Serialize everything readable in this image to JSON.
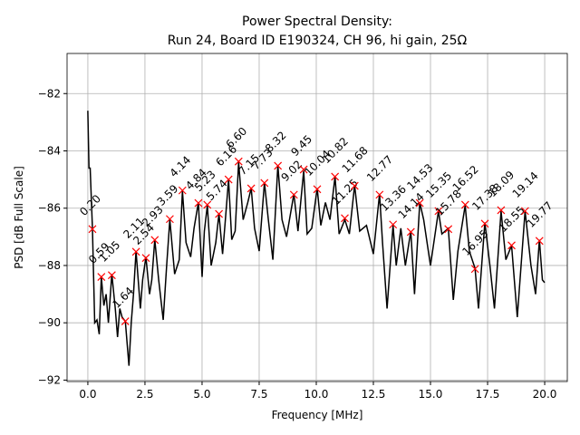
{
  "chart_data": {
    "type": "line",
    "title": "Power Spectral Density:",
    "subtitle": "Run 24, Board ID E190324, CH 96, hi gain, 25Ω",
    "x_label": "Frequency [MHz]",
    "y_label": "PSD [dB Full Scale]",
    "xlim": [
      -0.91,
      20.99
    ],
    "ylim": [
      -92.05,
      -80.6
    ],
    "xticks": [
      {
        "value": 0,
        "label": "0.0"
      },
      {
        "value": 2.5,
        "label": "2.5"
      },
      {
        "value": 5,
        "label": "5.0"
      },
      {
        "value": 7.5,
        "label": "7.5"
      },
      {
        "value": 10,
        "label": "10.0"
      },
      {
        "value": 12.5,
        "label": "12.5"
      },
      {
        "value": 15,
        "label": "15.0"
      },
      {
        "value": 17.5,
        "label": "17.5"
      },
      {
        "value": 20,
        "label": "20.0"
      }
    ],
    "yticks": [
      {
        "value": -92,
        "label": "−92"
      },
      {
        "value": -90,
        "label": "−90"
      },
      {
        "value": -88,
        "label": "−88"
      },
      {
        "value": -86,
        "label": "−86"
      },
      {
        "value": -84,
        "label": "−84"
      },
      {
        "value": -82,
        "label": "−82"
      }
    ],
    "grid": true,
    "series": [
      {
        "color": "#000000",
        "x": [
          0,
          0.05,
          0.1,
          0.2,
          0.3,
          0.4,
          0.5,
          0.59,
          0.7,
          0.8,
          0.9,
          1.05,
          1.2,
          1.3,
          1.4,
          1.5,
          1.64,
          1.8,
          1.9,
          2.0,
          2.11,
          2.3,
          2.4,
          2.54,
          2.7,
          2.8,
          2.93,
          3.1,
          3.3,
          3.45,
          3.59,
          3.8,
          4.0,
          4.14,
          4.3,
          4.5,
          4.65,
          4.84,
          5.0,
          5.1,
          5.23,
          5.4,
          5.6,
          5.74,
          5.9,
          6.0,
          6.16,
          6.3,
          6.45,
          6.6,
          6.8,
          7.0,
          7.15,
          7.3,
          7.5,
          7.73,
          7.9,
          8.1,
          8.32,
          8.5,
          8.7,
          9.02,
          9.2,
          9.45,
          9.6,
          9.8,
          10.04,
          10.2,
          10.4,
          10.6,
          10.82,
          11.0,
          11.25,
          11.45,
          11.68,
          11.9,
          12.2,
          12.5,
          12.77,
          12.9,
          13.1,
          13.36,
          13.5,
          13.7,
          13.9,
          14.14,
          14.3,
          14.53,
          14.7,
          15.0,
          15.35,
          15.5,
          15.78,
          16.0,
          16.2,
          16.52,
          16.7,
          16.95,
          17.1,
          17.38,
          17.6,
          17.8,
          18.09,
          18.3,
          18.55,
          18.8,
          19.14,
          19.4,
          19.6,
          19.77,
          19.9,
          20.0
        ],
        "values": [
          -82.6,
          -84.6,
          -84.6,
          -86.7,
          -90.0,
          -89.9,
          -90.4,
          -88.4,
          -89.4,
          -89.0,
          -90.0,
          -88.3,
          -89.5,
          -90.5,
          -89.5,
          -89.8,
          -89.95,
          -91.5,
          -90.0,
          -89.0,
          -87.5,
          -89.5,
          -88.5,
          -87.7,
          -89.0,
          -88.5,
          -87.1,
          -88.5,
          -89.9,
          -88.0,
          -86.4,
          -88.3,
          -87.8,
          -85.4,
          -87.2,
          -87.7,
          -86.7,
          -85.8,
          -88.4,
          -86.8,
          -85.9,
          -88.0,
          -87.2,
          -86.2,
          -87.6,
          -86.6,
          -85.0,
          -87.1,
          -86.8,
          -84.4,
          -86.4,
          -85.8,
          -85.3,
          -86.7,
          -87.5,
          -85.1,
          -86.4,
          -87.8,
          -84.5,
          -86.4,
          -87.0,
          -85.5,
          -86.8,
          -84.7,
          -86.9,
          -86.7,
          -85.3,
          -86.6,
          -85.8,
          -86.4,
          -84.9,
          -86.9,
          -86.4,
          -86.9,
          -85.2,
          -86.8,
          -86.6,
          -87.6,
          -85.5,
          -87.2,
          -89.5,
          -86.6,
          -88.0,
          -86.7,
          -88.0,
          -86.8,
          -89.0,
          -85.8,
          -86.4,
          -88.0,
          -86.1,
          -86.9,
          -86.7,
          -89.2,
          -87.5,
          -85.9,
          -87.5,
          -88.1,
          -89.5,
          -86.5,
          -88.0,
          -89.5,
          -86.1,
          -87.8,
          -87.3,
          -89.8,
          -86.1,
          -88.0,
          -89.0,
          -87.1,
          -88.5,
          -88.6
        ]
      },
      {
        "type": "scatter",
        "color": "#ff0000",
        "x": [
          0.2,
          0.59,
          1.05,
          1.64,
          2.11,
          2.54,
          2.93,
          3.59,
          4.14,
          4.84,
          5.23,
          5.74,
          6.16,
          6.6,
          7.15,
          7.73,
          8.32,
          9.02,
          9.45,
          10.04,
          10.82,
          11.25,
          11.68,
          12.77,
          13.36,
          14.14,
          14.53,
          15.35,
          15.78,
          16.52,
          16.95,
          17.38,
          18.09,
          18.55,
          19.14,
          19.77
        ],
        "x_labels": [
          "0.20",
          "0.59",
          "1.05",
          "1.64",
          "2.11",
          "2.54",
          "2.93",
          "3.59",
          "4.14",
          "4.84",
          "5.23",
          "5.74",
          "6.16",
          "6.60",
          "7.15",
          "7.73",
          "8.32",
          "9.02",
          "9.45",
          "10.04",
          "10.82",
          "11.25",
          "11.68",
          "12.77",
          "13.36",
          "14.14",
          "14.53",
          "15.35",
          "15.78",
          "16.52",
          "16.95",
          "17.38",
          "18.09",
          "18.55",
          "19.14",
          "19.77"
        ],
        "values": [
          -86.73,
          -88.4,
          -88.34,
          -89.95,
          -87.52,
          -87.74,
          -87.11,
          -86.38,
          -85.38,
          -85.82,
          -85.88,
          -86.2,
          -85.0,
          -84.37,
          -85.31,
          -85.12,
          -84.52,
          -85.53,
          -84.65,
          -85.34,
          -84.9,
          -86.35,
          -85.22,
          -85.53,
          -86.57,
          -86.83,
          -85.82,
          -86.1,
          -86.73,
          -85.88,
          -88.12,
          -86.54,
          -86.07,
          -87.3,
          -86.1,
          -87.14
        ]
      }
    ]
  }
}
